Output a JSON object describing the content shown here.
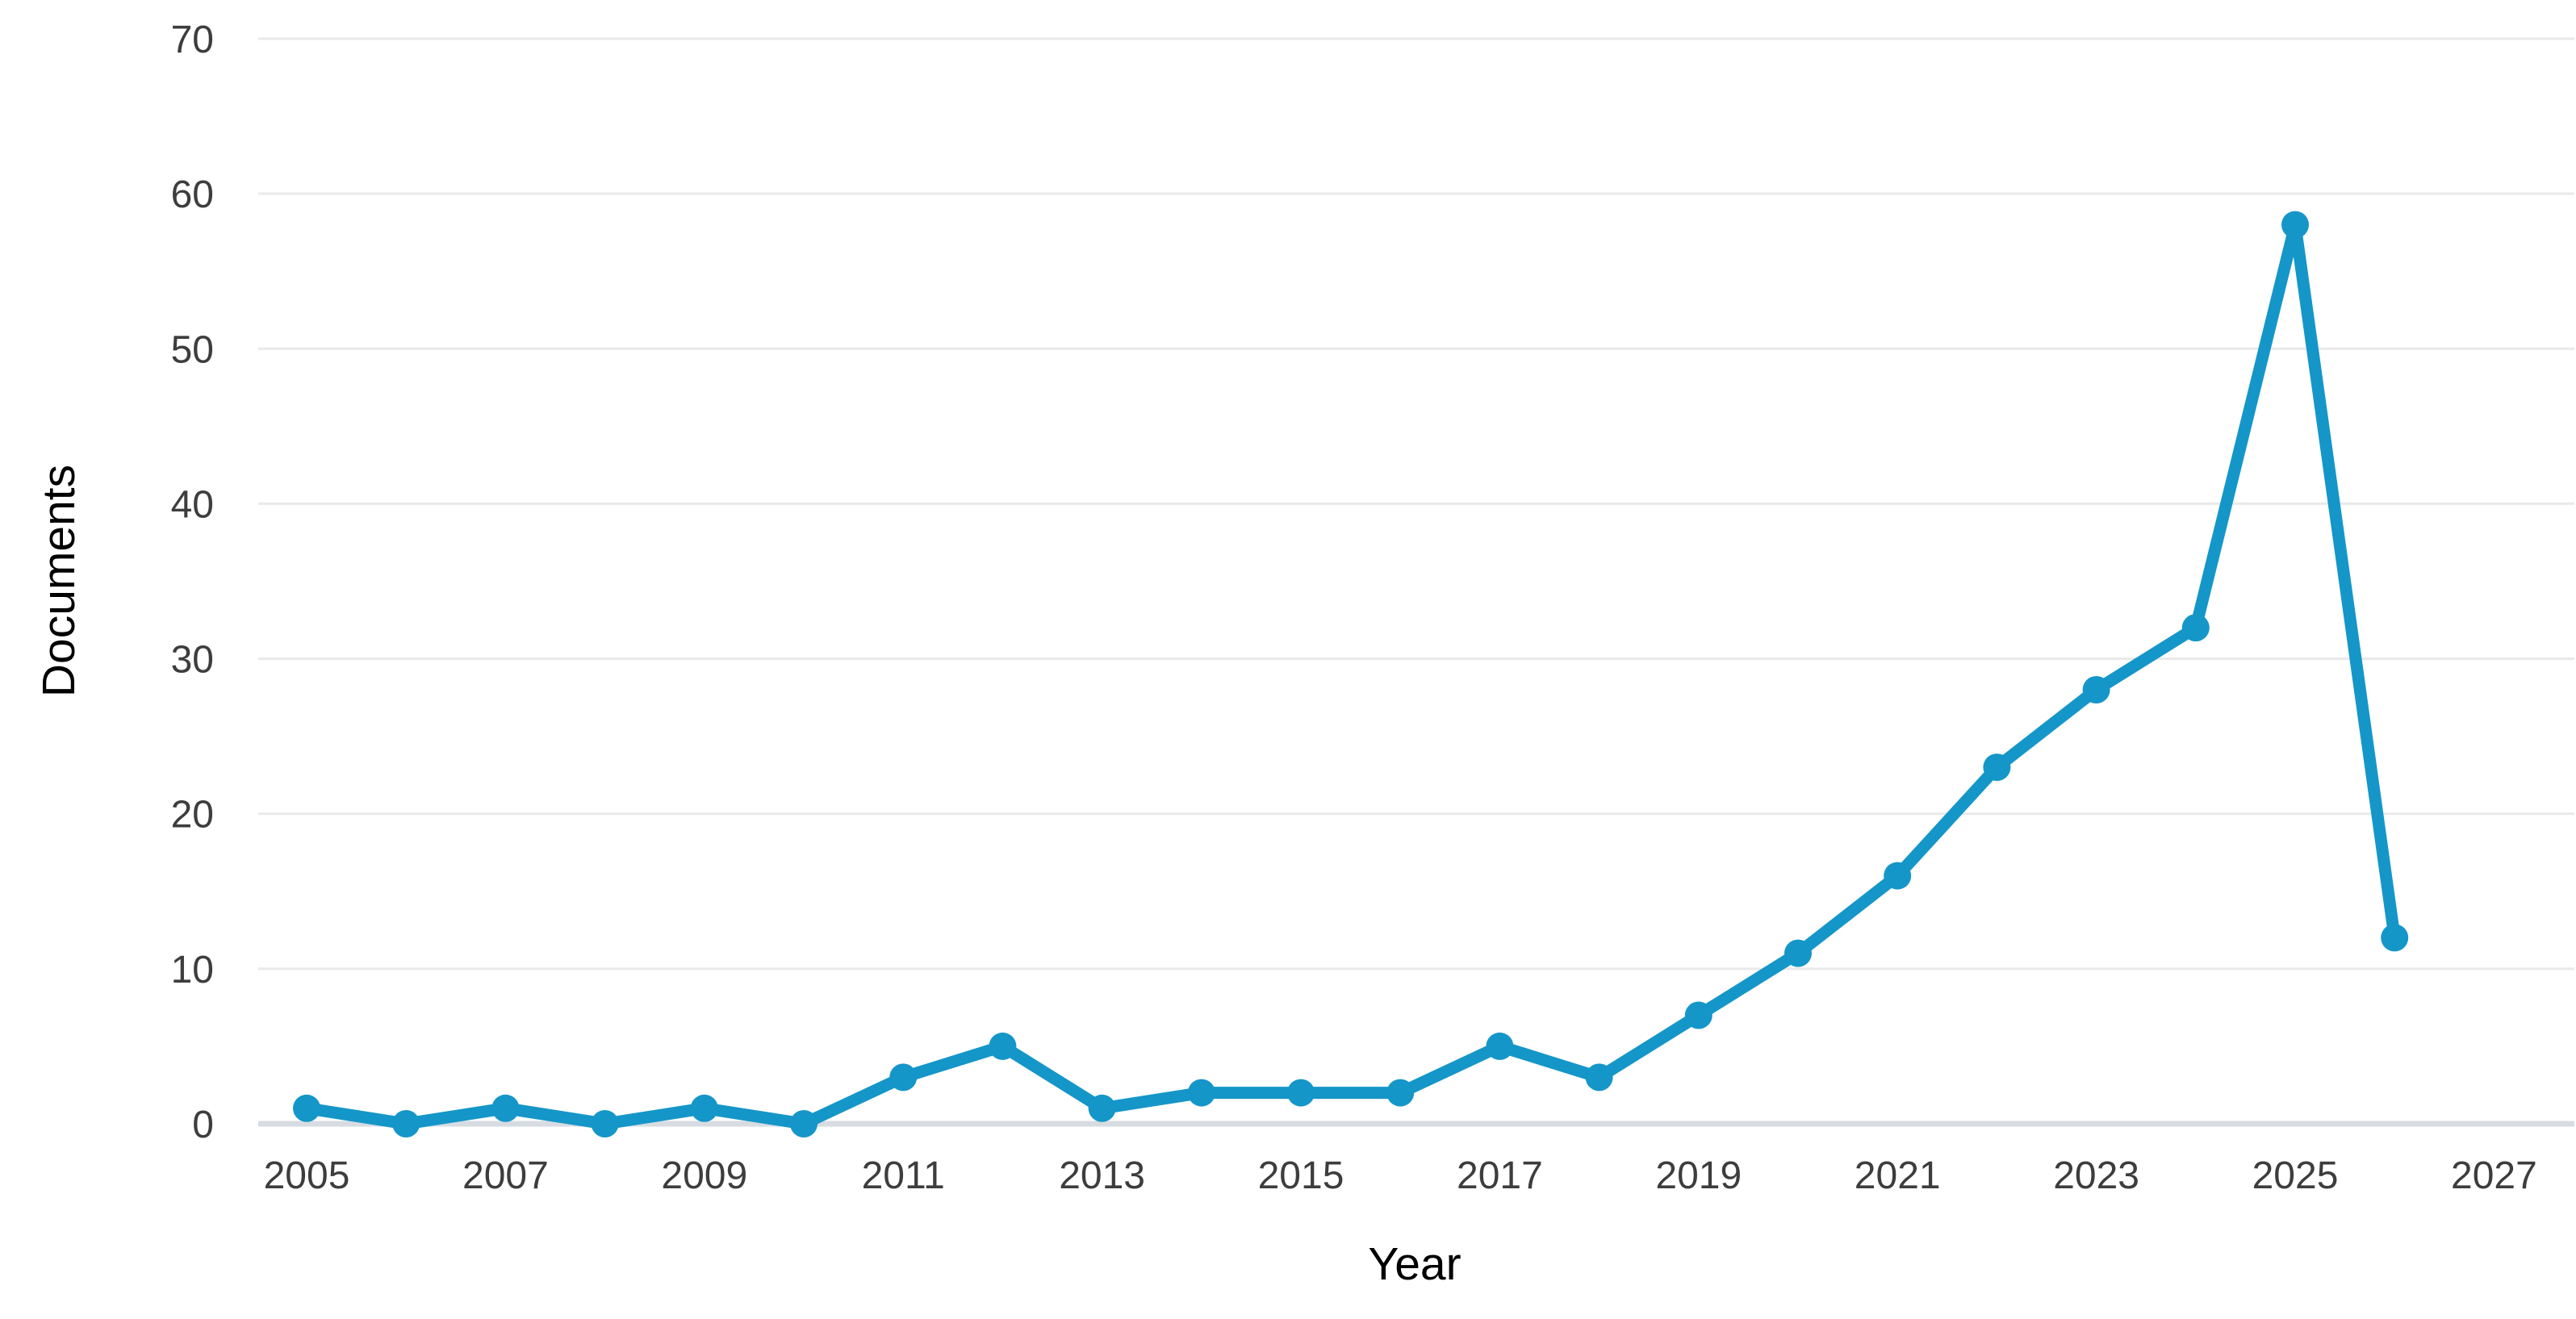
{
  "chart_data": {
    "type": "line",
    "title": "",
    "xlabel": "Year",
    "ylabel": "Documents",
    "x": [
      2005,
      2006,
      2007,
      2008,
      2009,
      2010,
      2011,
      2012,
      2013,
      2014,
      2015,
      2016,
      2017,
      2018,
      2019,
      2020,
      2021,
      2022,
      2023,
      2024,
      2025,
      2026
    ],
    "series": [
      {
        "name": "Documents",
        "values": [
          1,
          0,
          1,
          0,
          1,
          0,
          3,
          5,
          1,
          2,
          2,
          2,
          5,
          3,
          7,
          11,
          16,
          23,
          28,
          32,
          58,
          12
        ]
      }
    ],
    "x_tick_labels": [
      "2005",
      "2007",
      "2009",
      "2011",
      "2013",
      "2015",
      "2017",
      "2019",
      "2021",
      "2023",
      "2025",
      "2027"
    ],
    "x_tick_years": [
      2005,
      2007,
      2009,
      2011,
      2013,
      2015,
      2017,
      2019,
      2021,
      2023,
      2025,
      2027
    ],
    "y_ticks": [
      0,
      10,
      20,
      30,
      40,
      50,
      60,
      70
    ],
    "ylim": [
      0,
      70
    ],
    "xlim": [
      2004.5,
      2027.8
    ],
    "grid": "horizontal",
    "legend": "none",
    "colors": {
      "line": "#1596c8",
      "marker": "#1596c8",
      "gridline": "#e9e9e9",
      "axis_line": "#d7dce2",
      "text": "#3d3d3d",
      "background": "#ffffff"
    }
  }
}
